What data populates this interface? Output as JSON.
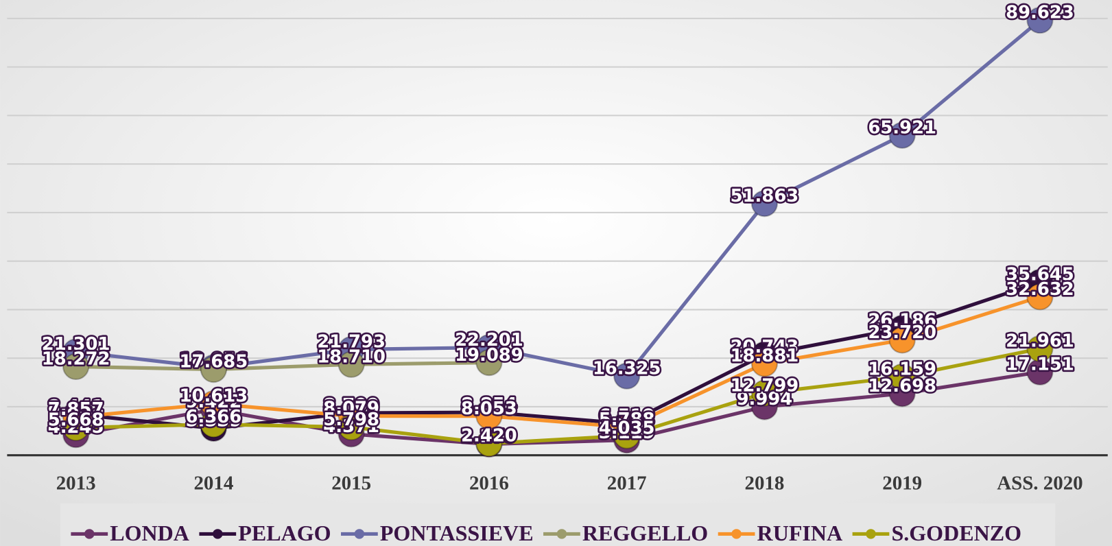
{
  "chart_data": {
    "type": "line",
    "categories": [
      "2013",
      "2014",
      "2015",
      "2016",
      "2017",
      "2018",
      "2019",
      "ASS. 2020"
    ],
    "ylim": [
      0,
      90000
    ],
    "yticks": [
      0,
      10000,
      20000,
      30000,
      40000,
      50000,
      60000,
      70000,
      80000,
      90000
    ],
    "grid": true,
    "legend": "bottom",
    "series": [
      {
        "name": "LONDA",
        "color": "#6b3468",
        "values": [
          4245,
          9422,
          4371,
          2279,
          3119,
          9994,
          12698,
          17151
        ],
        "value_labels": [
          "4.245",
          "9.422",
          "4.371",
          "2.279",
          "3.119",
          "9.994",
          "12.698",
          "17.151"
        ]
      },
      {
        "name": "PELAGO",
        "color": "#2f0f3c",
        "values": [
          8441,
          5539,
          8709,
          8854,
          6519,
          20743,
          26186,
          35645
        ],
        "value_labels": [
          "8.441",
          "5.539",
          "8.709",
          "8.854",
          "6.519",
          "20.743",
          "26.186",
          "35.645"
        ]
      },
      {
        "name": "PONTASSIEVE",
        "color": "#6a6ca6",
        "values": [
          21301,
          18056,
          21793,
          22201,
          16325,
          51863,
          65921,
          89623
        ],
        "value_labels": [
          "21.301",
          "18.056",
          "21.793",
          "22.201",
          "16.325",
          "51.863",
          "65.921",
          "89.623"
        ]
      },
      {
        "name": "REGGELLO",
        "color": "#9c9c6c",
        "values": [
          18272,
          17685,
          18710,
          19089,
          null,
          null,
          null,
          null
        ],
        "value_labels": [
          "18.272",
          "17.685",
          "18.710",
          "19.089",
          null,
          null,
          null,
          null
        ]
      },
      {
        "name": "RUFINA",
        "color": "#f7932b",
        "values": [
          7857,
          10613,
          8079,
          8053,
          5788,
          18881,
          23720,
          32632
        ],
        "value_labels": [
          "7.857",
          "10.613",
          "8.079",
          "8.053",
          "5.788",
          "18.881",
          "23.720",
          "32.632"
        ]
      },
      {
        "name": "S.GODENZO",
        "color": "#a9a20f",
        "values": [
          5668,
          6366,
          5798,
          2420,
          4035,
          12799,
          16159,
          21961
        ],
        "value_labels": [
          "5.668",
          "6.366",
          "5.798",
          "2.420",
          "4.035",
          "12.799",
          "16.159",
          "21.961"
        ]
      }
    ]
  }
}
